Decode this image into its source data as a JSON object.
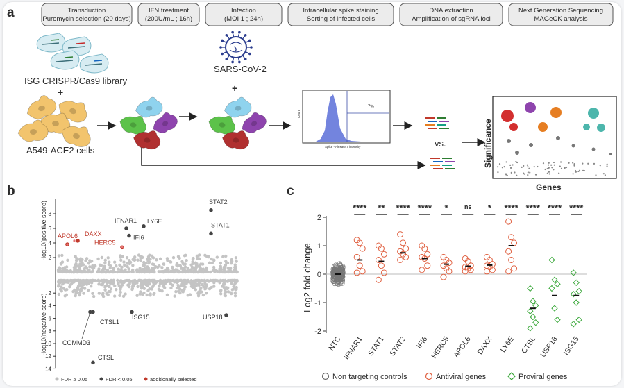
{
  "panel_a": {
    "label": "a",
    "steps": [
      {
        "line1": "Transduction",
        "line2": "Puromycin selection (20 days)"
      },
      {
        "line1": "IFN treatment",
        "line2": "(200U/mL ; 16h)"
      },
      {
        "line1": "Infection",
        "line2": "(MOI 1 ; 24h)"
      },
      {
        "line1": "Intracellular spike staining",
        "line2": "Sorting of infected cells"
      },
      {
        "line1": "DNA extraction",
        "line2": "Amplification of sgRNA loci"
      },
      {
        "line1": "Next Generation Sequencing",
        "line2": "MAGeCK analysis"
      }
    ],
    "library_label": "ISG CRISPR/Cas9 library",
    "plus": "+",
    "cells_label": "A549-ACE2 cells",
    "virus_label": "SARS-CoV-2",
    "flow_percent": "7%",
    "flow_ylabel": "Count",
    "flow_xlabel": "Spike - Alexa647 intensity",
    "vs_label": "vs.",
    "sig_ylabel": "Significance",
    "sig_xlabel": "Genes",
    "colors": {
      "red": "#d32f2f",
      "purple": "#8e44ad",
      "orange": "#e67e22",
      "teal": "#4db6ac",
      "yellow_cell": "#f2c46d",
      "green_cell": "#5cc24a",
      "dark_red_cell": "#b03030",
      "blue_cell": "#8fd3ee"
    }
  },
  "panel_b": {
    "label": "b",
    "ylabel_top": "-log10(positive score)",
    "ylabel_bottom": "-log10(negative score)",
    "top_ticks": [
      "2",
      "4",
      "6",
      "8"
    ],
    "bottom_ticks": [
      "2",
      "4",
      "6",
      "8",
      "10",
      "12",
      "14"
    ],
    "top_genes": [
      {
        "name": "STAT2",
        "value": 8.5,
        "selected": false
      },
      {
        "name": "STAT1",
        "value": 5.3,
        "selected": false
      },
      {
        "name": "IFNAR1",
        "value": 6.0,
        "selected": false
      },
      {
        "name": "LY6E",
        "value": 6.3,
        "selected": false
      },
      {
        "name": "IFI6",
        "value": 5.0,
        "selected": false
      },
      {
        "name": "APOL6",
        "value": 3.8,
        "selected": true
      },
      {
        "name": "DAXX",
        "value": 4.3,
        "selected": true
      },
      {
        "name": "HERC5",
        "value": 3.4,
        "selected": true
      }
    ],
    "bottom_genes": [
      {
        "name": "CTSL1",
        "value": 5.0
      },
      {
        "name": "COMMD3",
        "value": 5.0
      },
      {
        "name": "ISG15",
        "value": 5.0
      },
      {
        "name": "USP18",
        "value": 5.5
      },
      {
        "name": "CTSL",
        "value": 13.0
      }
    ],
    "legend": [
      {
        "label": "FDR ≥ 0.05",
        "color": "#bdbdbd"
      },
      {
        "label": "FDR < 0.05",
        "color": "#444444"
      },
      {
        "label": "additionally selected",
        "color": "#c0392b"
      }
    ]
  },
  "panel_c": {
    "label": "c",
    "chart_data": {
      "type": "scatter",
      "ylabel": "Log2 fold change",
      "ylim": [
        -2,
        2
      ],
      "yticks": [
        "-2",
        "-1",
        "0",
        "1",
        "2"
      ],
      "categories": [
        "NTC",
        "IFNAR1",
        "STAT1",
        "STAT2",
        "IFI6",
        "HERC5",
        "APOL6",
        "DAXX",
        "LY6E",
        "CTSL",
        "USP18",
        "ISG15"
      ],
      "groups": [
        "control",
        "antiviral",
        "antiviral",
        "antiviral",
        "antiviral",
        "antiviral",
        "antiviral",
        "antiviral",
        "antiviral",
        "proviral",
        "proviral",
        "proviral"
      ],
      "significance": [
        "",
        "****",
        "**",
        "****",
        "****",
        "*",
        "ns",
        "*",
        "****",
        "****",
        "****",
        "****"
      ],
      "means": [
        0.0,
        0.5,
        0.45,
        0.75,
        0.55,
        0.35,
        0.28,
        0.32,
        1.0,
        -1.2,
        -0.75,
        -0.75
      ],
      "points": [
        [],
        [
          1.2,
          1.1,
          0.9,
          0.6,
          0.3,
          0.1,
          0.05
        ],
        [
          1.0,
          0.9,
          0.7,
          0.5,
          0.3,
          0.05,
          -0.2
        ],
        [
          1.4,
          1.1,
          0.9,
          0.8,
          0.7,
          0.6,
          0.5
        ],
        [
          1.0,
          0.9,
          0.7,
          0.6,
          0.55,
          0.3,
          0.15
        ],
        [
          0.6,
          0.5,
          0.4,
          0.3,
          0.2,
          0.1,
          -0.1
        ],
        [
          0.55,
          0.45,
          0.3,
          0.25,
          0.2,
          0.15,
          0.1
        ],
        [
          0.6,
          0.5,
          0.35,
          0.3,
          0.25,
          0.15,
          0.1
        ],
        [
          1.85,
          1.3,
          1.1,
          0.8,
          0.5,
          0.2,
          0.1
        ],
        [
          -0.5,
          -0.95,
          -1.1,
          -1.3,
          -1.5,
          -1.7,
          -1.9
        ],
        [
          0.5,
          -0.2,
          -0.35,
          -0.5,
          -1.2,
          -1.6
        ],
        [
          0.05,
          -0.3,
          -0.6,
          -0.7,
          -1.0,
          -1.6,
          -1.75
        ]
      ],
      "legend": [
        {
          "label": "Non targeting controls",
          "color": "#666666",
          "marker": "circle"
        },
        {
          "label": "Antiviral genes",
          "color": "#e06040",
          "marker": "circle"
        },
        {
          "label": "Proviral genes",
          "color": "#3aa83a",
          "marker": "diamond"
        }
      ]
    }
  }
}
